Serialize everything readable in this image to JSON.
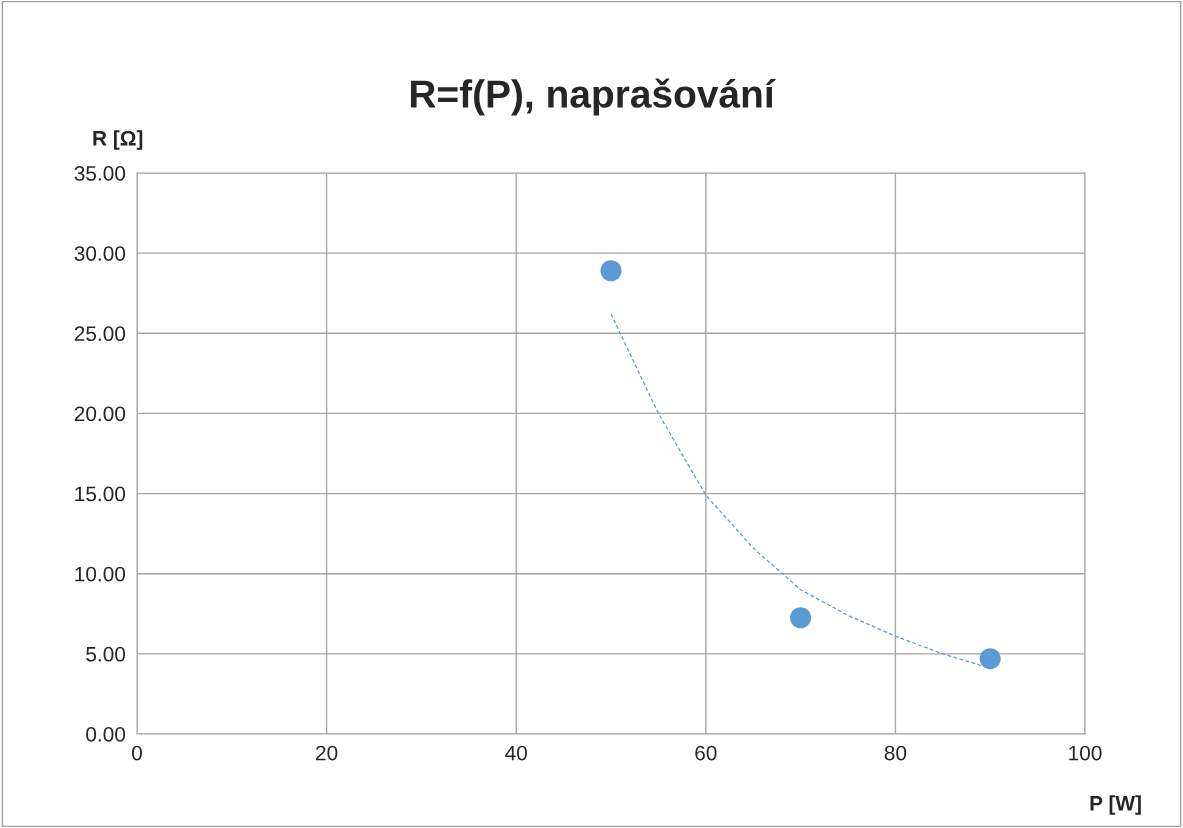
{
  "chart_data": {
    "type": "scatter",
    "title": "R=f(P), naprašování",
    "xlabel": "P [W]",
    "ylabel": "R [Ω]",
    "xlim": [
      0,
      100
    ],
    "xticks": [
      0,
      20,
      40,
      60,
      80,
      100
    ],
    "ylim": [
      0,
      35
    ],
    "yticks": [
      {
        "value": 0,
        "label": "0.00"
      },
      {
        "value": 5,
        "label": "5.00"
      },
      {
        "value": 10,
        "label": "10.00"
      },
      {
        "value": 15,
        "label": "15.00"
      },
      {
        "value": 20,
        "label": "20.00"
      },
      {
        "value": 25,
        "label": "25.00"
      },
      {
        "value": 30,
        "label": "30.00"
      },
      {
        "value": 35,
        "label": "35.00"
      }
    ],
    "grid": true,
    "marker": "circle",
    "series": [
      {
        "color": "#5b9bd5",
        "x": [
          50,
          70,
          90
        ],
        "values": [
          28.9,
          7.25,
          4.7
        ]
      },
      {
        "type": "line",
        "color": "#5b9bd5",
        "line_style": "dashed",
        "marker": "none",
        "x": [
          50,
          55,
          60,
          65,
          70,
          75,
          80,
          85,
          90
        ],
        "values": [
          26.2,
          20.0,
          14.9,
          11.6,
          9.0,
          7.4,
          6.1,
          5.0,
          4.1
        ]
      }
    ]
  }
}
